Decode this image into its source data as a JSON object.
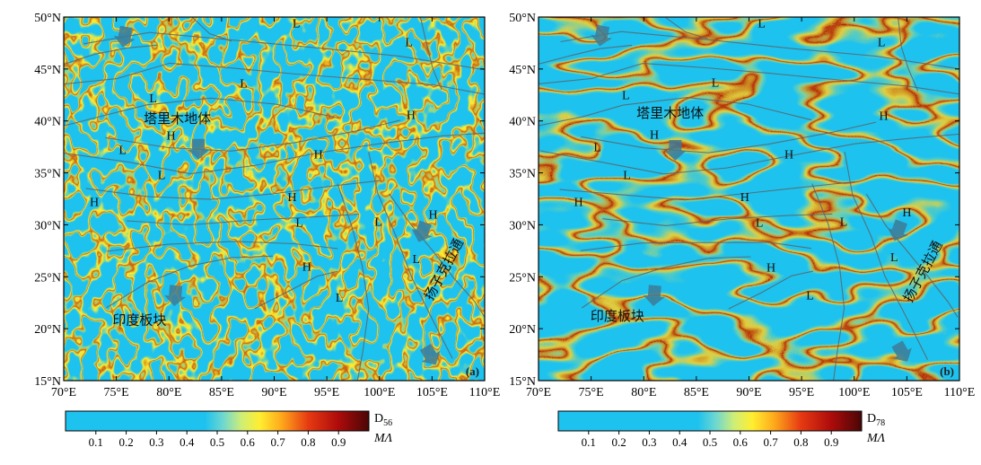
{
  "panels": [
    {
      "id": "a",
      "panel_label": "(a)",
      "colorbar_label": "D",
      "colorbar_sub": "56",
      "colorbar_unit": "MΛ",
      "noise": 14,
      "places": [
        {
          "text": "塔里木地体",
          "lon": 80.8,
          "lat": 39.8
        },
        {
          "text": "印度板块",
          "lon": 77.2,
          "lat": 20.4
        },
        {
          "text": "扬子克拉通",
          "lon": 106.5,
          "lat": 25.5,
          "rotate": -62
        }
      ],
      "marks": [
        {
          "t": "L",
          "lon": 92.1,
          "lat": 49.0
        },
        {
          "t": "L",
          "lon": 102.8,
          "lat": 47.2
        },
        {
          "t": "L",
          "lon": 87.1,
          "lat": 43.2
        },
        {
          "t": "L",
          "lon": 78.5,
          "lat": 41.8
        },
        {
          "t": "H",
          "lon": 80.2,
          "lat": 38.2
        },
        {
          "t": "H",
          "lon": 103.0,
          "lat": 40.2
        },
        {
          "t": "H",
          "lon": 94.2,
          "lat": 36.4
        },
        {
          "t": "L",
          "lon": 75.6,
          "lat": 36.8
        },
        {
          "t": "L",
          "lon": 79.3,
          "lat": 34.4
        },
        {
          "t": "H",
          "lon": 72.9,
          "lat": 31.8
        },
        {
          "t": "H",
          "lon": 91.7,
          "lat": 32.3
        },
        {
          "t": "L",
          "lon": 92.4,
          "lat": 29.8
        },
        {
          "t": "L",
          "lon": 99.9,
          "lat": 29.9
        },
        {
          "t": "H",
          "lon": 105.1,
          "lat": 30.6
        },
        {
          "t": "L",
          "lon": 103.5,
          "lat": 26.3
        },
        {
          "t": "H",
          "lon": 93.1,
          "lat": 25.6
        },
        {
          "t": "L",
          "lon": 96.2,
          "lat": 22.6
        }
      ],
      "arrows": [
        {
          "lon": 75.8,
          "lat": 48.2,
          "angle": 100
        },
        {
          "lon": 82.8,
          "lat": 37.4,
          "angle": 90
        },
        {
          "lon": 80.6,
          "lat": 23.3,
          "angle": 95
        },
        {
          "lon": 104.1,
          "lat": 29.4,
          "angle": 110
        },
        {
          "lon": 104.8,
          "lat": 17.5,
          "angle": 60
        }
      ]
    },
    {
      "id": "b",
      "panel_label": "(b)",
      "colorbar_label": "D",
      "colorbar_sub": "78",
      "colorbar_unit": "MΛ",
      "noise": 6,
      "places": [
        {
          "text": "塔里木地体",
          "lon": 82.5,
          "lat": 40.3
        },
        {
          "text": "印度板块",
          "lon": 77.5,
          "lat": 20.8
        },
        {
          "text": "扬子克拉通",
          "lon": 106.9,
          "lat": 25.3,
          "rotate": -62
        }
      ],
      "marks": [
        {
          "t": "L",
          "lon": 91.2,
          "lat": 49.0
        },
        {
          "t": "L",
          "lon": 102.6,
          "lat": 47.2
        },
        {
          "t": "L",
          "lon": 86.8,
          "lat": 43.3
        },
        {
          "t": "L",
          "lon": 78.3,
          "lat": 42.1
        },
        {
          "t": "H",
          "lon": 81.0,
          "lat": 38.3
        },
        {
          "t": "H",
          "lon": 102.8,
          "lat": 40.1
        },
        {
          "t": "H",
          "lon": 93.8,
          "lat": 36.4
        },
        {
          "t": "L",
          "lon": 75.6,
          "lat": 37.1
        },
        {
          "t": "L",
          "lon": 78.4,
          "lat": 34.4
        },
        {
          "t": "H",
          "lon": 73.8,
          "lat": 31.8
        },
        {
          "t": "H",
          "lon": 89.6,
          "lat": 32.3
        },
        {
          "t": "L",
          "lon": 91.0,
          "lat": 29.8
        },
        {
          "t": "L",
          "lon": 99.0,
          "lat": 29.9
        },
        {
          "t": "H",
          "lon": 105.0,
          "lat": 30.8
        },
        {
          "t": "L",
          "lon": 103.8,
          "lat": 26.5
        },
        {
          "t": "H",
          "lon": 92.1,
          "lat": 25.5
        },
        {
          "t": "L",
          "lon": 95.8,
          "lat": 22.8
        }
      ],
      "arrows": [
        {
          "lon": 76.0,
          "lat": 48.3,
          "angle": 100
        },
        {
          "lon": 83.0,
          "lat": 37.3,
          "angle": 90
        },
        {
          "lon": 81.0,
          "lat": 23.3,
          "angle": 95
        },
        {
          "lon": 104.2,
          "lat": 29.5,
          "angle": 110
        },
        {
          "lon": 104.5,
          "lat": 17.8,
          "angle": 60
        }
      ]
    }
  ],
  "axes": {
    "x_ticks": [
      "70°E",
      "75°E",
      "80°E",
      "85°E",
      "90°E",
      "95°E",
      "100°E",
      "105°E",
      "110°E"
    ],
    "x_values": [
      70,
      75,
      80,
      85,
      90,
      95,
      100,
      105,
      110
    ],
    "y_ticks": [
      "50°N",
      "45°N",
      "40°N",
      "35°N",
      "30°N",
      "25°N",
      "20°N",
      "15°N"
    ],
    "y_values": [
      50,
      45,
      40,
      35,
      30,
      25,
      20,
      15
    ],
    "lon_range": [
      70,
      110
    ],
    "lat_range": [
      15,
      50
    ]
  },
  "colorbar": {
    "ticks": [
      "0.1",
      "0.2",
      "0.3",
      "0.4",
      "0.5",
      "0.6",
      "0.7",
      "0.8",
      "0.9"
    ],
    "tick_values": [
      0.1,
      0.2,
      0.3,
      0.4,
      0.5,
      0.6,
      0.7,
      0.8,
      0.9
    ],
    "range": [
      0,
      1
    ]
  },
  "colors": {
    "background": "#1ec2ee",
    "stops": [
      "#1ec2ee",
      "#1ec2ee",
      "#6fd7d0",
      "#cfee76",
      "#ffee30",
      "#ffab1c",
      "#e63a12",
      "#ad0b0b",
      "#4a0606"
    ],
    "faults": "#5a6469",
    "arrow": "#3d7a96"
  }
}
